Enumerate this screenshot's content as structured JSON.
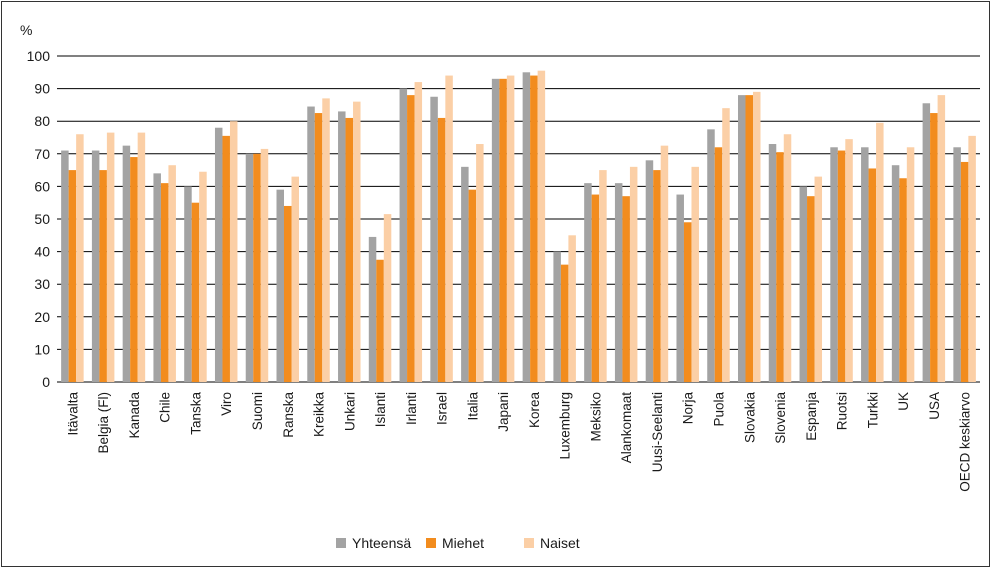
{
  "chart_data": {
    "type": "bar",
    "title": "",
    "xlabel": "",
    "ylabel": "%",
    "ylim": [
      0,
      100
    ],
    "yticks": [
      0,
      10,
      20,
      30,
      40,
      50,
      60,
      70,
      80,
      90,
      100
    ],
    "grid": "horizontal",
    "legend_position": "bottom",
    "categories": [
      "Itävalta",
      "Belgia (Fl)",
      "Kanada",
      "Chile",
      "Tanska",
      "Viro",
      "Suomi",
      "Ranska",
      "Kreikka",
      "Unkari",
      "Islanti",
      "Irlanti",
      "Israel",
      "Italia",
      "Japani",
      "Korea",
      "Luxemburg",
      "Meksiko",
      "Alankomaat",
      "Uusi-Seelanti",
      "Norja",
      "Puola",
      "Slovakia",
      "Slovenia",
      "Espanja",
      "Ruotsi",
      "Turkki",
      "UK",
      "USA",
      "OECD keskiarvo"
    ],
    "series": [
      {
        "name": "Yhteensä",
        "color": "#a3a3a3",
        "values": [
          71,
          71,
          72.5,
          64,
          60,
          78,
          70,
          59,
          84.5,
          83,
          44.5,
          90,
          87.5,
          66,
          93,
          95,
          40,
          61,
          61,
          68,
          57.5,
          77.5,
          88,
          73,
          60,
          72,
          72,
          66.5,
          85.5,
          72
        ]
      },
      {
        "name": "Miehet",
        "color": "#f28c1e",
        "values": [
          65,
          65,
          69,
          61,
          55,
          75.5,
          70,
          54,
          82.5,
          81,
          37.5,
          88,
          81,
          59,
          93,
          94,
          36,
          57.5,
          57,
          65,
          49,
          72,
          88,
          70.5,
          57,
          71,
          65.5,
          62.5,
          82.5,
          67.5
        ]
      },
      {
        "name": "Naiset",
        "color": "#fbcfa6",
        "values": [
          76,
          76.5,
          76.5,
          66.5,
          64.5,
          80,
          71.5,
          63,
          87,
          86,
          51.5,
          92,
          94,
          73,
          94,
          95.5,
          45,
          65,
          66,
          72.5,
          66,
          84,
          89,
          76,
          63,
          74.5,
          79.5,
          72,
          88,
          75.5
        ]
      }
    ]
  }
}
